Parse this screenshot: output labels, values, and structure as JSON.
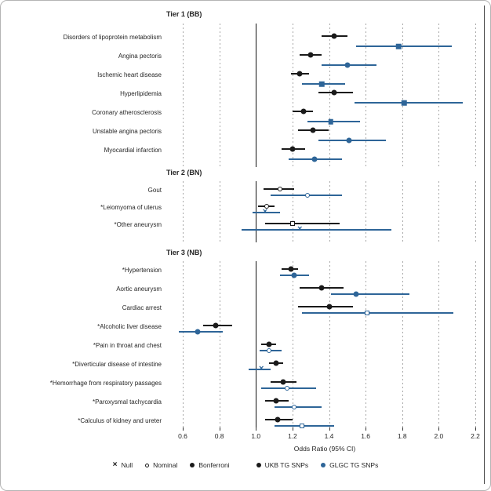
{
  "colors": {
    "ukb": "#1a1a1a",
    "glgc": "#2e6598",
    "grid": "#a8a8a8",
    "refline": "#111111",
    "text": "#262626"
  },
  "axis": {
    "title": "Odds Ratio (95% CI)",
    "tick_labels": [
      "0.6",
      "0.8",
      "1.0",
      "1.2",
      "1.4",
      "1.6",
      "1.8",
      "2.0",
      "2.2"
    ],
    "tick_values": [
      0.6,
      0.8,
      1.0,
      1.2,
      1.4,
      1.6,
      1.8,
      2.0,
      2.2
    ],
    "reference_value": 1.0,
    "min": 0.6,
    "max": 2.2
  },
  "legend": {
    "items": [
      {
        "label": "Null",
        "marker": "x-mark",
        "color": "#1a1a1a"
      },
      {
        "label": "Nominal",
        "marker": "open-circle",
        "color": "#1a1a1a"
      },
      {
        "label": "Bonferroni",
        "marker": "filled-circle",
        "color": "#1a1a1a"
      },
      {
        "label": "UKB TG SNPs",
        "marker": "filled-circle",
        "color": "#1a1a1a",
        "series_gap": true
      },
      {
        "label": "GLGC TG SNPs",
        "marker": "filled-circle",
        "color": "#2e6598"
      }
    ]
  },
  "chart_data": {
    "type": "forest-plot",
    "title": "",
    "xlabel": "Odds Ratio (95% CI)",
    "xlim": [
      0.6,
      2.2
    ],
    "grid": "vertical-dashed",
    "series_names": [
      "UKB TG SNPs",
      "GLGC TG SNPs"
    ],
    "groups": [
      {
        "title": "Tier 1 (BB)",
        "rows": [
          {
            "label": "Disorders of lipoprotein metabolism",
            "ukb": {
              "or": 1.43,
              "lo": 1.36,
              "hi": 1.5,
              "marker": "filled-circle"
            },
            "glgc": {
              "or": 1.78,
              "lo": 1.55,
              "hi": 2.07,
              "marker": "filled-square"
            }
          },
          {
            "label": "Angina pectoris",
            "ukb": {
              "or": 1.3,
              "lo": 1.24,
              "hi": 1.36,
              "marker": "filled-circle"
            },
            "glgc": {
              "or": 1.5,
              "lo": 1.36,
              "hi": 1.66,
              "marker": "filled-circle"
            }
          },
          {
            "label": "Ischemic heart disease",
            "ukb": {
              "or": 1.24,
              "lo": 1.19,
              "hi": 1.29,
              "marker": "filled-circle"
            },
            "glgc": {
              "or": 1.36,
              "lo": 1.25,
              "hi": 1.49,
              "marker": "filled-square"
            }
          },
          {
            "label": "Hyperlipidemia",
            "ukb": {
              "or": 1.43,
              "lo": 1.34,
              "hi": 1.53,
              "marker": "filled-circle"
            },
            "glgc": {
              "or": 1.81,
              "lo": 1.54,
              "hi": 2.13,
              "marker": "filled-square"
            }
          },
          {
            "label": "Coronary atherosclerosis",
            "ukb": {
              "or": 1.26,
              "lo": 1.2,
              "hi": 1.31,
              "marker": "filled-circle"
            },
            "glgc": {
              "or": 1.41,
              "lo": 1.28,
              "hi": 1.57,
              "marker": "filled-square"
            }
          },
          {
            "label": "Unstable angina pectoris",
            "ukb": {
              "or": 1.31,
              "lo": 1.23,
              "hi": 1.4,
              "marker": "filled-circle"
            },
            "glgc": {
              "or": 1.51,
              "lo": 1.34,
              "hi": 1.71,
              "marker": "filled-circle"
            }
          },
          {
            "label": "Myocardial infarction",
            "ukb": {
              "or": 1.2,
              "lo": 1.14,
              "hi": 1.27,
              "marker": "filled-circle"
            },
            "glgc": {
              "or": 1.32,
              "lo": 1.18,
              "hi": 1.47,
              "marker": "filled-circle"
            }
          }
        ]
      },
      {
        "title": "Tier 2 (BN)",
        "rows": [
          {
            "label": "Gout",
            "ukb": {
              "or": 1.13,
              "lo": 1.04,
              "hi": 1.21,
              "marker": "open-circle"
            },
            "glgc": {
              "or": 1.28,
              "lo": 1.08,
              "hi": 1.47,
              "marker": "open-circle"
            }
          },
          {
            "label": "*Leiomyoma of uterus",
            "ukb": {
              "or": 1.06,
              "lo": 1.01,
              "hi": 1.1,
              "marker": "open-circle"
            },
            "glgc": {
              "or": 1.05,
              "lo": 0.98,
              "hi": 1.13,
              "marker": "x-mark"
            }
          },
          {
            "label": "*Other aneurysm",
            "ukb": {
              "or": 1.2,
              "lo": 1.05,
              "hi": 1.46,
              "marker": "open-square"
            },
            "glgc": {
              "or": 1.24,
              "lo": 0.92,
              "hi": 1.74,
              "marker": "x-mark"
            }
          }
        ]
      },
      {
        "title": "Tier 3 (NB)",
        "rows": [
          {
            "label": "*Hypertension",
            "ukb": {
              "or": 1.19,
              "lo": 1.14,
              "hi": 1.23,
              "marker": "filled-circle"
            },
            "glgc": {
              "or": 1.21,
              "lo": 1.13,
              "hi": 1.29,
              "marker": "filled-circle"
            }
          },
          {
            "label": "Aortic aneurysm",
            "ukb": {
              "or": 1.36,
              "lo": 1.24,
              "hi": 1.48,
              "marker": "filled-circle"
            },
            "glgc": {
              "or": 1.55,
              "lo": 1.41,
              "hi": 1.84,
              "marker": "filled-circle"
            }
          },
          {
            "label": "Cardiac arrest",
            "ukb": {
              "or": 1.4,
              "lo": 1.23,
              "hi": 1.53,
              "marker": "filled-circle"
            },
            "glgc": {
              "or": 1.61,
              "lo": 1.25,
              "hi": 2.08,
              "marker": "open-square"
            }
          },
          {
            "label": "*Alcoholic liver disease",
            "ukb": {
              "or": 0.78,
              "lo": 0.71,
              "hi": 0.87,
              "marker": "filled-circle"
            },
            "glgc": {
              "or": 0.68,
              "lo": 0.58,
              "hi": 0.82,
              "marker": "filled-circle"
            }
          },
          {
            "label": "*Pain in throat and chest",
            "ukb": {
              "or": 1.07,
              "lo": 1.03,
              "hi": 1.11,
              "marker": "filled-circle"
            },
            "glgc": {
              "or": 1.07,
              "lo": 1.02,
              "hi": 1.14,
              "marker": "open-circle"
            }
          },
          {
            "label": "*Diverticular disease of intestine",
            "ukb": {
              "or": 1.11,
              "lo": 1.07,
              "hi": 1.15,
              "marker": "filled-circle"
            },
            "glgc": {
              "or": 1.03,
              "lo": 0.96,
              "hi": 1.08,
              "marker": "x-mark"
            }
          },
          {
            "label": "*Hemorrhage from respiratory passages",
            "ukb": {
              "or": 1.15,
              "lo": 1.08,
              "hi": 1.22,
              "marker": "filled-circle"
            },
            "glgc": {
              "or": 1.17,
              "lo": 1.03,
              "hi": 1.33,
              "marker": "open-circle"
            }
          },
          {
            "label": "*Paroxysmal tachycardia",
            "ukb": {
              "or": 1.11,
              "lo": 1.05,
              "hi": 1.18,
              "marker": "filled-circle"
            },
            "glgc": {
              "or": 1.21,
              "lo": 1.1,
              "hi": 1.36,
              "marker": "open-circle"
            }
          },
          {
            "label": "*Calculus of kidney and ureter",
            "ukb": {
              "or": 1.12,
              "lo": 1.05,
              "hi": 1.2,
              "marker": "filled-circle"
            },
            "glgc": {
              "or": 1.25,
              "lo": 1.1,
              "hi": 1.43,
              "marker": "open-square"
            }
          }
        ]
      }
    ]
  }
}
